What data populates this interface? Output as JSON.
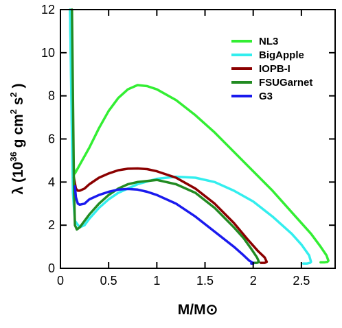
{
  "chart_data": {
    "type": "line",
    "xlabel": "M/M⊙",
    "ylabel": "λ (10³⁶ g cm² s² )",
    "ylabel_parts": {
      "base": "λ (10",
      "exp1": "36",
      "mid": " g cm",
      "exp2": "2",
      "mid2": "  s",
      "exp3": "2",
      "end": "  )"
    },
    "xlim": [
      0,
      2.85
    ],
    "ylim": [
      0,
      12
    ],
    "xticks": [
      0,
      0.5,
      1,
      1.5,
      2,
      2.5
    ],
    "xtick_labels": [
      "0",
      "0.5",
      "1",
      "1.5",
      "2",
      "2.5"
    ],
    "yticks": [
      0,
      2,
      4,
      6,
      8,
      10,
      12
    ],
    "ytick_labels": [
      "0",
      "2",
      "4",
      "6",
      "8",
      "10",
      "12"
    ],
    "grid": false,
    "legend_position": "top-right",
    "series": [
      {
        "name": "NL3",
        "color": "#33ee33",
        "x": [
          0.1,
          0.11,
          0.12,
          0.13,
          0.15,
          0.2,
          0.3,
          0.4,
          0.5,
          0.6,
          0.7,
          0.8,
          0.9,
          1.0,
          1.2,
          1.4,
          1.6,
          1.8,
          2.0,
          2.2,
          2.4,
          2.6,
          2.7,
          2.76,
          2.78,
          2.77,
          2.74,
          2.7
        ],
        "y": [
          12,
          9.5,
          6.5,
          4.8,
          4.4,
          4.8,
          5.6,
          6.5,
          7.3,
          7.9,
          8.3,
          8.5,
          8.45,
          8.3,
          7.8,
          7.1,
          6.3,
          5.4,
          4.5,
          3.6,
          2.6,
          1.6,
          1.0,
          0.6,
          0.35,
          0.3,
          0.28,
          0.28
        ]
      },
      {
        "name": "BigApple",
        "color": "#33eeee",
        "x": [
          0.1,
          0.11,
          0.12,
          0.13,
          0.15,
          0.2,
          0.25,
          0.3,
          0.4,
          0.5,
          0.6,
          0.8,
          1.0,
          1.2,
          1.4,
          1.6,
          1.8,
          2.0,
          2.2,
          2.4,
          2.5,
          2.58,
          2.6,
          2.59,
          2.56,
          2.52
        ],
        "y": [
          12,
          9,
          6,
          3.5,
          2.2,
          1.9,
          2.0,
          2.3,
          2.8,
          3.2,
          3.5,
          3.9,
          4.15,
          4.25,
          4.2,
          4.0,
          3.6,
          3.1,
          2.4,
          1.6,
          1.1,
          0.6,
          0.3,
          0.25,
          0.22,
          0.22
        ]
      },
      {
        "name": "IOPB-I",
        "color": "#8b0000",
        "x": [
          0.14,
          0.16,
          0.18,
          0.2,
          0.25,
          0.3,
          0.4,
          0.5,
          0.6,
          0.7,
          0.8,
          0.9,
          1.0,
          1.2,
          1.4,
          1.6,
          1.8,
          1.95,
          2.05,
          2.12,
          2.14,
          2.12,
          2.08
        ],
        "y": [
          4.2,
          3.7,
          3.6,
          3.6,
          3.7,
          3.9,
          4.2,
          4.4,
          4.55,
          4.62,
          4.63,
          4.6,
          4.5,
          4.2,
          3.7,
          3.0,
          2.1,
          1.3,
          0.8,
          0.5,
          0.3,
          0.25,
          0.25
        ]
      },
      {
        "name": "FSUGarnet",
        "color": "#228b22",
        "x": [
          0.12,
          0.13,
          0.14,
          0.15,
          0.17,
          0.2,
          0.3,
          0.4,
          0.5,
          0.6,
          0.7,
          0.8,
          1.0,
          1.2,
          1.4,
          1.6,
          1.8,
          1.9,
          1.98,
          2.04,
          2.06,
          2.04,
          2.0
        ],
        "y": [
          12,
          8,
          4,
          2.0,
          1.8,
          1.9,
          2.5,
          3.0,
          3.4,
          3.7,
          3.9,
          4.0,
          4.1,
          3.9,
          3.5,
          2.8,
          1.9,
          1.4,
          0.9,
          0.5,
          0.3,
          0.25,
          0.25
        ]
      },
      {
        "name": "G3",
        "color": "#1a1aee",
        "x": [
          0.15,
          0.16,
          0.18,
          0.2,
          0.25,
          0.3,
          0.4,
          0.5,
          0.6,
          0.7,
          0.8,
          0.9,
          1.0,
          1.2,
          1.4,
          1.6,
          1.8,
          1.9,
          1.96,
          2.0,
          2.0,
          1.98
        ],
        "y": [
          3.8,
          3.3,
          3.0,
          2.95,
          3.0,
          3.2,
          3.4,
          3.55,
          3.65,
          3.68,
          3.65,
          3.55,
          3.4,
          3.0,
          2.4,
          1.7,
          1.0,
          0.6,
          0.35,
          0.25,
          0.22,
          0.22
        ]
      }
    ]
  }
}
